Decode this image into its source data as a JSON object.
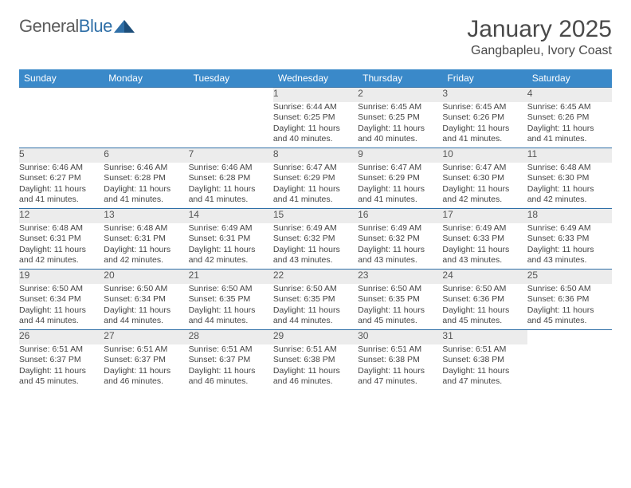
{
  "logo": {
    "word1": "General",
    "word2": "Blue"
  },
  "title": "January 2025",
  "location": "Gangbapleu, Ivory Coast",
  "colors": {
    "header_bg": "#3a89c9",
    "header_text": "#ffffff",
    "daynum_bg": "#ececec",
    "row_border": "#2f6fa7",
    "body_text": "#444444",
    "title_text": "#4a4a4a"
  },
  "weekdays": [
    "Sunday",
    "Monday",
    "Tuesday",
    "Wednesday",
    "Thursday",
    "Friday",
    "Saturday"
  ],
  "weeks": [
    [
      null,
      null,
      null,
      {
        "d": "1",
        "sr": "Sunrise: 6:44 AM",
        "ss": "Sunset: 6:25 PM",
        "dl1": "Daylight: 11 hours",
        "dl2": "and 40 minutes."
      },
      {
        "d": "2",
        "sr": "Sunrise: 6:45 AM",
        "ss": "Sunset: 6:25 PM",
        "dl1": "Daylight: 11 hours",
        "dl2": "and 40 minutes."
      },
      {
        "d": "3",
        "sr": "Sunrise: 6:45 AM",
        "ss": "Sunset: 6:26 PM",
        "dl1": "Daylight: 11 hours",
        "dl2": "and 41 minutes."
      },
      {
        "d": "4",
        "sr": "Sunrise: 6:45 AM",
        "ss": "Sunset: 6:26 PM",
        "dl1": "Daylight: 11 hours",
        "dl2": "and 41 minutes."
      }
    ],
    [
      {
        "d": "5",
        "sr": "Sunrise: 6:46 AM",
        "ss": "Sunset: 6:27 PM",
        "dl1": "Daylight: 11 hours",
        "dl2": "and 41 minutes."
      },
      {
        "d": "6",
        "sr": "Sunrise: 6:46 AM",
        "ss": "Sunset: 6:28 PM",
        "dl1": "Daylight: 11 hours",
        "dl2": "and 41 minutes."
      },
      {
        "d": "7",
        "sr": "Sunrise: 6:46 AM",
        "ss": "Sunset: 6:28 PM",
        "dl1": "Daylight: 11 hours",
        "dl2": "and 41 minutes."
      },
      {
        "d": "8",
        "sr": "Sunrise: 6:47 AM",
        "ss": "Sunset: 6:29 PM",
        "dl1": "Daylight: 11 hours",
        "dl2": "and 41 minutes."
      },
      {
        "d": "9",
        "sr": "Sunrise: 6:47 AM",
        "ss": "Sunset: 6:29 PM",
        "dl1": "Daylight: 11 hours",
        "dl2": "and 41 minutes."
      },
      {
        "d": "10",
        "sr": "Sunrise: 6:47 AM",
        "ss": "Sunset: 6:30 PM",
        "dl1": "Daylight: 11 hours",
        "dl2": "and 42 minutes."
      },
      {
        "d": "11",
        "sr": "Sunrise: 6:48 AM",
        "ss": "Sunset: 6:30 PM",
        "dl1": "Daylight: 11 hours",
        "dl2": "and 42 minutes."
      }
    ],
    [
      {
        "d": "12",
        "sr": "Sunrise: 6:48 AM",
        "ss": "Sunset: 6:31 PM",
        "dl1": "Daylight: 11 hours",
        "dl2": "and 42 minutes."
      },
      {
        "d": "13",
        "sr": "Sunrise: 6:48 AM",
        "ss": "Sunset: 6:31 PM",
        "dl1": "Daylight: 11 hours",
        "dl2": "and 42 minutes."
      },
      {
        "d": "14",
        "sr": "Sunrise: 6:49 AM",
        "ss": "Sunset: 6:31 PM",
        "dl1": "Daylight: 11 hours",
        "dl2": "and 42 minutes."
      },
      {
        "d": "15",
        "sr": "Sunrise: 6:49 AM",
        "ss": "Sunset: 6:32 PM",
        "dl1": "Daylight: 11 hours",
        "dl2": "and 43 minutes."
      },
      {
        "d": "16",
        "sr": "Sunrise: 6:49 AM",
        "ss": "Sunset: 6:32 PM",
        "dl1": "Daylight: 11 hours",
        "dl2": "and 43 minutes."
      },
      {
        "d": "17",
        "sr": "Sunrise: 6:49 AM",
        "ss": "Sunset: 6:33 PM",
        "dl1": "Daylight: 11 hours",
        "dl2": "and 43 minutes."
      },
      {
        "d": "18",
        "sr": "Sunrise: 6:49 AM",
        "ss": "Sunset: 6:33 PM",
        "dl1": "Daylight: 11 hours",
        "dl2": "and 43 minutes."
      }
    ],
    [
      {
        "d": "19",
        "sr": "Sunrise: 6:50 AM",
        "ss": "Sunset: 6:34 PM",
        "dl1": "Daylight: 11 hours",
        "dl2": "and 44 minutes."
      },
      {
        "d": "20",
        "sr": "Sunrise: 6:50 AM",
        "ss": "Sunset: 6:34 PM",
        "dl1": "Daylight: 11 hours",
        "dl2": "and 44 minutes."
      },
      {
        "d": "21",
        "sr": "Sunrise: 6:50 AM",
        "ss": "Sunset: 6:35 PM",
        "dl1": "Daylight: 11 hours",
        "dl2": "and 44 minutes."
      },
      {
        "d": "22",
        "sr": "Sunrise: 6:50 AM",
        "ss": "Sunset: 6:35 PM",
        "dl1": "Daylight: 11 hours",
        "dl2": "and 44 minutes."
      },
      {
        "d": "23",
        "sr": "Sunrise: 6:50 AM",
        "ss": "Sunset: 6:35 PM",
        "dl1": "Daylight: 11 hours",
        "dl2": "and 45 minutes."
      },
      {
        "d": "24",
        "sr": "Sunrise: 6:50 AM",
        "ss": "Sunset: 6:36 PM",
        "dl1": "Daylight: 11 hours",
        "dl2": "and 45 minutes."
      },
      {
        "d": "25",
        "sr": "Sunrise: 6:50 AM",
        "ss": "Sunset: 6:36 PM",
        "dl1": "Daylight: 11 hours",
        "dl2": "and 45 minutes."
      }
    ],
    [
      {
        "d": "26",
        "sr": "Sunrise: 6:51 AM",
        "ss": "Sunset: 6:37 PM",
        "dl1": "Daylight: 11 hours",
        "dl2": "and 45 minutes."
      },
      {
        "d": "27",
        "sr": "Sunrise: 6:51 AM",
        "ss": "Sunset: 6:37 PM",
        "dl1": "Daylight: 11 hours",
        "dl2": "and 46 minutes."
      },
      {
        "d": "28",
        "sr": "Sunrise: 6:51 AM",
        "ss": "Sunset: 6:37 PM",
        "dl1": "Daylight: 11 hours",
        "dl2": "and 46 minutes."
      },
      {
        "d": "29",
        "sr": "Sunrise: 6:51 AM",
        "ss": "Sunset: 6:38 PM",
        "dl1": "Daylight: 11 hours",
        "dl2": "and 46 minutes."
      },
      {
        "d": "30",
        "sr": "Sunrise: 6:51 AM",
        "ss": "Sunset: 6:38 PM",
        "dl1": "Daylight: 11 hours",
        "dl2": "and 47 minutes."
      },
      {
        "d": "31",
        "sr": "Sunrise: 6:51 AM",
        "ss": "Sunset: 6:38 PM",
        "dl1": "Daylight: 11 hours",
        "dl2": "and 47 minutes."
      },
      null
    ]
  ]
}
